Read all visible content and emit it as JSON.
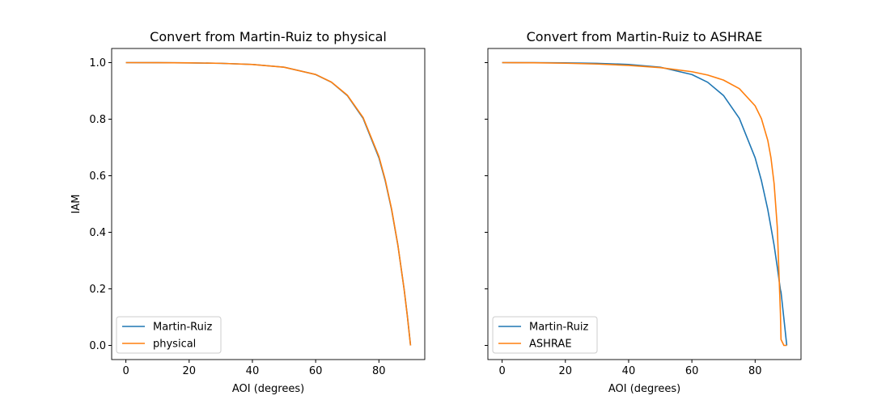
{
  "chart_data": [
    {
      "type": "line",
      "title": "Convert from Martin-Ruiz to physical",
      "xlabel": "AOI (degrees)",
      "ylabel": "IAM",
      "xlim": [
        -4.5,
        94.5
      ],
      "ylim": [
        -0.05,
        1.05
      ],
      "xticks": [
        0,
        20,
        40,
        60,
        80
      ],
      "yticks": [
        0.0,
        0.2,
        0.4,
        0.6,
        0.8,
        1.0
      ],
      "grid": false,
      "legend": "lower-left",
      "x": [
        0,
        10,
        20,
        30,
        40,
        50,
        60,
        65,
        70,
        75,
        80,
        82,
        84,
        86,
        88,
        89,
        90
      ],
      "series": [
        {
          "name": "Martin-Ruiz",
          "color": "#1f77b4",
          "values": [
            1.0,
            0.9998,
            0.9991,
            0.9975,
            0.9936,
            0.9839,
            0.9579,
            0.9305,
            0.8837,
            0.8031,
            0.6635,
            0.5821,
            0.4805,
            0.3541,
            0.1963,
            0.1036,
            0.0
          ]
        },
        {
          "name": "physical",
          "color": "#ff7f0e",
          "values": [
            1.0,
            0.9998,
            0.9991,
            0.9975,
            0.9935,
            0.9838,
            0.958,
            0.931,
            0.885,
            0.806,
            0.668,
            0.586,
            0.483,
            0.355,
            0.196,
            0.103,
            0.0
          ]
        }
      ]
    },
    {
      "type": "line",
      "title": "Convert from Martin-Ruiz to ASHRAE",
      "xlabel": "AOI (degrees)",
      "ylabel": "",
      "xlim": [
        -4.5,
        94.5
      ],
      "ylim": [
        -0.05,
        1.05
      ],
      "xticks": [
        0,
        20,
        40,
        60,
        80
      ],
      "yticks": [
        0.0,
        0.2,
        0.4,
        0.6,
        0.8,
        1.0
      ],
      "grid": false,
      "legend": "lower-left",
      "x": [
        0,
        10,
        20,
        30,
        40,
        50,
        60,
        65,
        70,
        75,
        80,
        82,
        84,
        85,
        86,
        87,
        88,
        88.18,
        89.09,
        90
      ],
      "series": [
        {
          "name": "Martin-Ruiz",
          "color": "#1f77b4",
          "values": [
            1.0,
            0.9998,
            0.9991,
            0.9975,
            0.9936,
            0.9839,
            0.9579,
            0.9305,
            0.8837,
            0.8031,
            0.6635,
            0.5821,
            0.4805,
            0.418,
            0.3541,
            0.277,
            0.1963,
            0.189,
            0.095,
            0.0
          ]
        },
        {
          "name": "ASHRAE",
          "color": "#ff7f0e",
          "values": [
            1.0,
            0.9995,
            0.9979,
            0.995,
            0.9902,
            0.9822,
            0.9679,
            0.9561,
            0.9382,
            0.9081,
            0.8472,
            0.8015,
            0.725,
            0.6638,
            0.5719,
            0.4188,
            0.1124,
            0.021,
            0.0,
            0.0
          ]
        }
      ]
    }
  ]
}
